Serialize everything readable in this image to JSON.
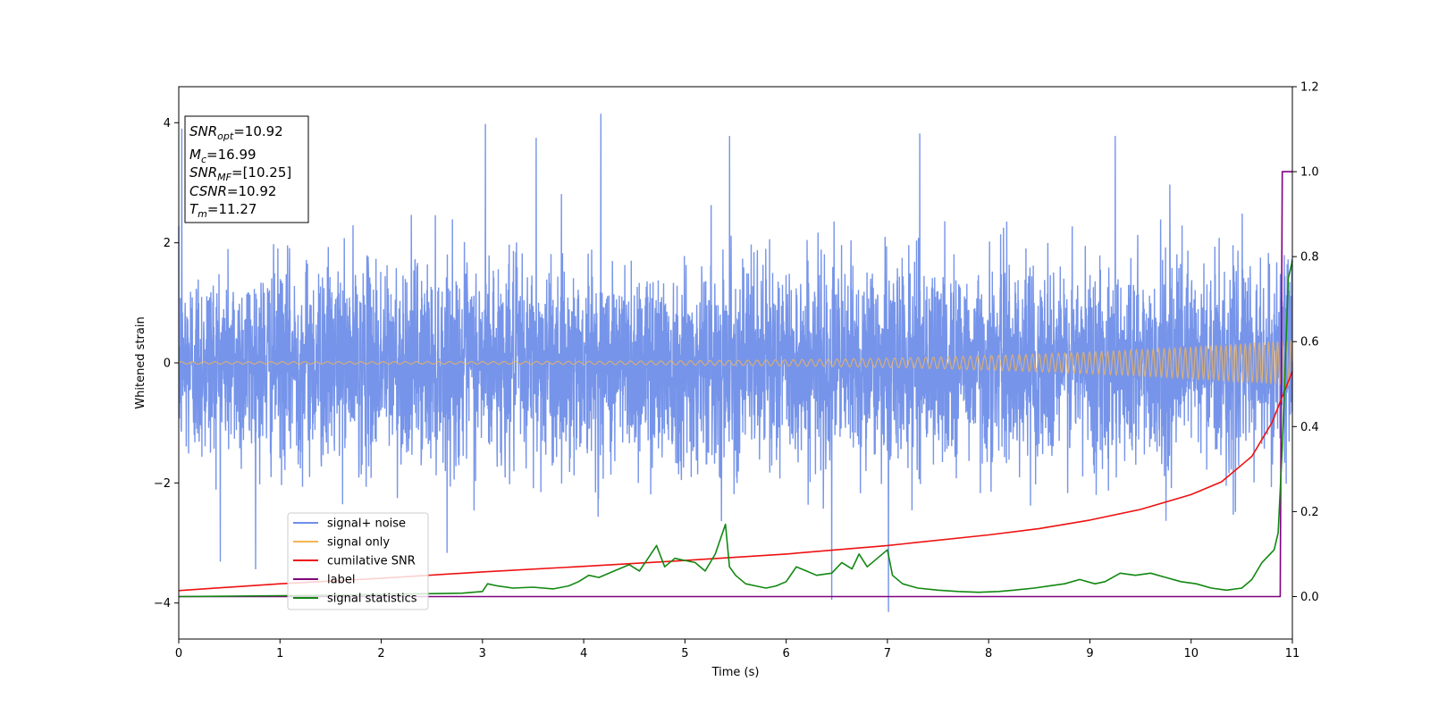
{
  "chart_data": {
    "type": "line",
    "xlabel": "Time (s)",
    "ylabel": "Whitened strain",
    "xlim": [
      0,
      11
    ],
    "ylim": [
      -4.6,
      4.6
    ],
    "y2lim": [
      -0.1,
      1.2
    ],
    "x_ticks": [
      "0",
      "1",
      "2",
      "3",
      "4",
      "5",
      "6",
      "7",
      "8",
      "9",
      "10",
      "11"
    ],
    "y_ticks": [
      "−4",
      "−2",
      "0",
      "2",
      "4"
    ],
    "y_tick_values": [
      -4,
      -2,
      0,
      2,
      4
    ],
    "y2_ticks": [
      "0.0",
      "0.2",
      "0.4",
      "0.6",
      "0.8",
      "1.0",
      "1.2"
    ],
    "y2_tick_values": [
      0.0,
      0.2,
      0.4,
      0.6,
      0.8,
      1.0,
      1.2
    ],
    "info_box": [
      {
        "main": "SNR",
        "sub": "opt",
        "rest": "=10.92"
      },
      {
        "main": "M",
        "sub": "c",
        "rest": "=16.99"
      },
      {
        "main": "SNR",
        "sub": "MF",
        "rest": "=[10.25]"
      },
      {
        "main": "CSNR",
        "sub": "",
        "rest": "=10.92"
      },
      {
        "main": "T",
        "sub": "m",
        "rest": "=11.27"
      }
    ],
    "legend": {
      "placement": "lower-left",
      "entries": [
        "signal+ noise",
        "signal only",
        "cumilative SNR",
        "label",
        "signal statistics"
      ]
    },
    "series": [
      {
        "name": "signal+ noise",
        "axis": "left",
        "color": "#6f8ee8",
        "noise_sigma": 1.0,
        "extreme_peaks": [
          [
            4.17,
            4.15
          ],
          [
            7.01,
            -4.15
          ],
          [
            6.45,
            -3.95
          ],
          [
            5.44,
            3.78
          ],
          [
            9.25,
            3.78
          ],
          [
            7.32,
            3.82
          ],
          [
            3.03,
            3.98
          ],
          [
            3.53,
            3.75
          ],
          [
            0.03,
            3.9
          ]
        ]
      },
      {
        "name": "signal only",
        "axis": "left",
        "color": "#f5b555",
        "amplitude_start": 0.02,
        "amplitude_end": 0.38
      },
      {
        "name": "cumilative SNR",
        "axis": "right",
        "color": "#ee1111",
        "x": [
          0,
          1,
          2,
          3,
          4,
          5,
          6,
          7,
          8,
          8.5,
          9,
          9.5,
          10,
          10.3,
          10.6,
          10.8,
          11
        ],
        "y": [
          0.014,
          0.03,
          0.043,
          0.058,
          0.071,
          0.085,
          0.1,
          0.12,
          0.145,
          0.16,
          0.18,
          0.205,
          0.24,
          0.27,
          0.33,
          0.41,
          0.53
        ]
      },
      {
        "name": "label",
        "axis": "right",
        "color": "#800080",
        "x": [
          0,
          10.88,
          10.9,
          11
        ],
        "y": [
          0.0,
          0.0,
          1.0,
          1.0
        ]
      },
      {
        "name": "signal statistics",
        "axis": "right",
        "color": "#118811",
        "x": [
          0,
          0.5,
          1,
          1.5,
          2,
          2.3,
          2.6,
          2.8,
          3.0,
          3.05,
          3.15,
          3.3,
          3.5,
          3.7,
          3.85,
          3.95,
          4.05,
          4.15,
          4.3,
          4.45,
          4.55,
          4.65,
          4.72,
          4.8,
          4.9,
          5.0,
          5.1,
          5.2,
          5.3,
          5.4,
          5.44,
          5.5,
          5.6,
          5.7,
          5.8,
          5.9,
          6.0,
          6.1,
          6.2,
          6.3,
          6.45,
          6.55,
          6.65,
          6.72,
          6.8,
          6.9,
          7.0,
          7.05,
          7.15,
          7.3,
          7.5,
          7.7,
          7.9,
          8.1,
          8.25,
          8.45,
          8.6,
          8.75,
          8.9,
          9.05,
          9.15,
          9.3,
          9.45,
          9.6,
          9.75,
          9.9,
          10.05,
          10.2,
          10.35,
          10.5,
          10.6,
          10.7,
          10.78,
          10.82,
          10.86,
          10.9,
          10.93,
          10.96,
          11
        ],
        "y": [
          0.0,
          0.001,
          0.002,
          0.003,
          0.005,
          0.006,
          0.007,
          0.008,
          0.012,
          0.03,
          0.025,
          0.02,
          0.022,
          0.018,
          0.025,
          0.035,
          0.05,
          0.045,
          0.06,
          0.075,
          0.06,
          0.095,
          0.12,
          0.07,
          0.09,
          0.085,
          0.08,
          0.06,
          0.1,
          0.17,
          0.07,
          0.05,
          0.03,
          0.025,
          0.02,
          0.025,
          0.035,
          0.07,
          0.06,
          0.05,
          0.055,
          0.08,
          0.065,
          0.1,
          0.07,
          0.09,
          0.11,
          0.05,
          0.03,
          0.02,
          0.015,
          0.012,
          0.01,
          0.012,
          0.015,
          0.02,
          0.025,
          0.03,
          0.04,
          0.03,
          0.035,
          0.055,
          0.05,
          0.055,
          0.045,
          0.035,
          0.03,
          0.02,
          0.015,
          0.02,
          0.04,
          0.08,
          0.1,
          0.11,
          0.15,
          0.35,
          0.55,
          0.75,
          0.79
        ]
      }
    ]
  }
}
